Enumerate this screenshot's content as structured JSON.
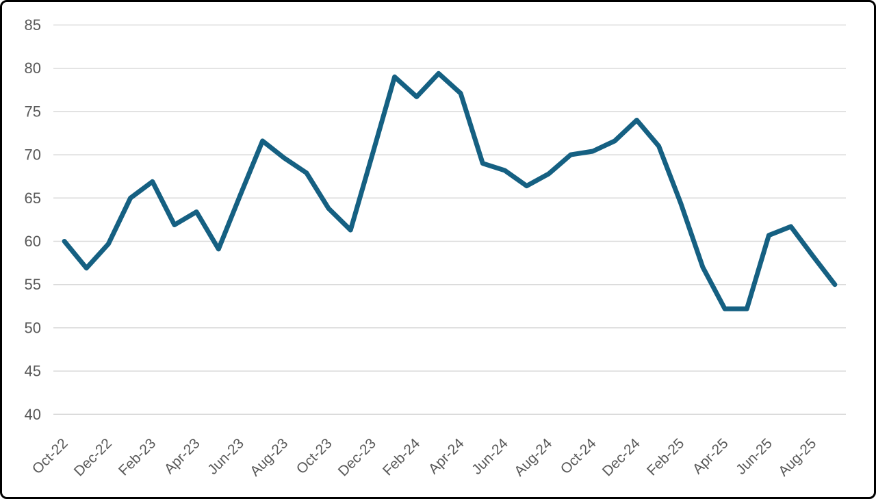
{
  "window": {
    "background_color": "#ffffff",
    "frame_border_color": "#000000"
  },
  "chart_data": {
    "type": "line",
    "title": "",
    "xlabel": "",
    "ylabel": "",
    "legend_position": "none",
    "grid": true,
    "ylim": [
      40,
      85
    ],
    "y_ticks": [
      85,
      80,
      75,
      70,
      65,
      60,
      55,
      50,
      45,
      40
    ],
    "x": [
      "Oct-22",
      "Nov-22",
      "Dec-22",
      "Jan-23",
      "Feb-23",
      "Mar-23",
      "Apr-23",
      "May-23",
      "Jun-23",
      "Jul-23",
      "Aug-23",
      "Sep-23",
      "Oct-23",
      "Nov-23",
      "Dec-23",
      "Jan-24",
      "Feb-24",
      "Mar-24",
      "Apr-24",
      "May-24",
      "Jun-24",
      "Jul-24",
      "Aug-24",
      "Sep-24",
      "Oct-24",
      "Nov-24",
      "Dec-24",
      "Jan-25",
      "Feb-25",
      "Mar-25",
      "Apr-25",
      "May-25",
      "Jun-25",
      "Jul-25",
      "Aug-25",
      "Sep-25"
    ],
    "values": [
      60.0,
      56.9,
      59.7,
      65.0,
      66.9,
      61.9,
      63.4,
      59.1,
      65.4,
      71.6,
      69.6,
      67.9,
      63.8,
      61.3,
      70.1,
      79.0,
      76.7,
      79.4,
      77.1,
      69.0,
      68.2,
      66.4,
      67.8,
      70.0,
      70.4,
      71.6,
      74.0,
      71.0,
      64.4,
      57.0,
      52.2,
      52.2,
      60.7,
      61.7,
      58.3,
      55.0
    ],
    "x_tick_labels": [
      "Oct-22",
      "Dec-22",
      "Feb-23",
      "Apr-23",
      "Jun-23",
      "Aug-23",
      "Oct-23",
      "Dec-23",
      "Feb-24",
      "Apr-24",
      "Jun-24",
      "Aug-24",
      "Oct-24",
      "Dec-24",
      "Feb-25",
      "Apr-25",
      "Jun-25",
      "Aug-25"
    ],
    "x_tick_rotation_deg": -45,
    "line_color": "#156082",
    "line_width": 7,
    "gridline_color": "#D9D9D9",
    "axis_label_color": "#595959",
    "axis_font_size": 21
  }
}
